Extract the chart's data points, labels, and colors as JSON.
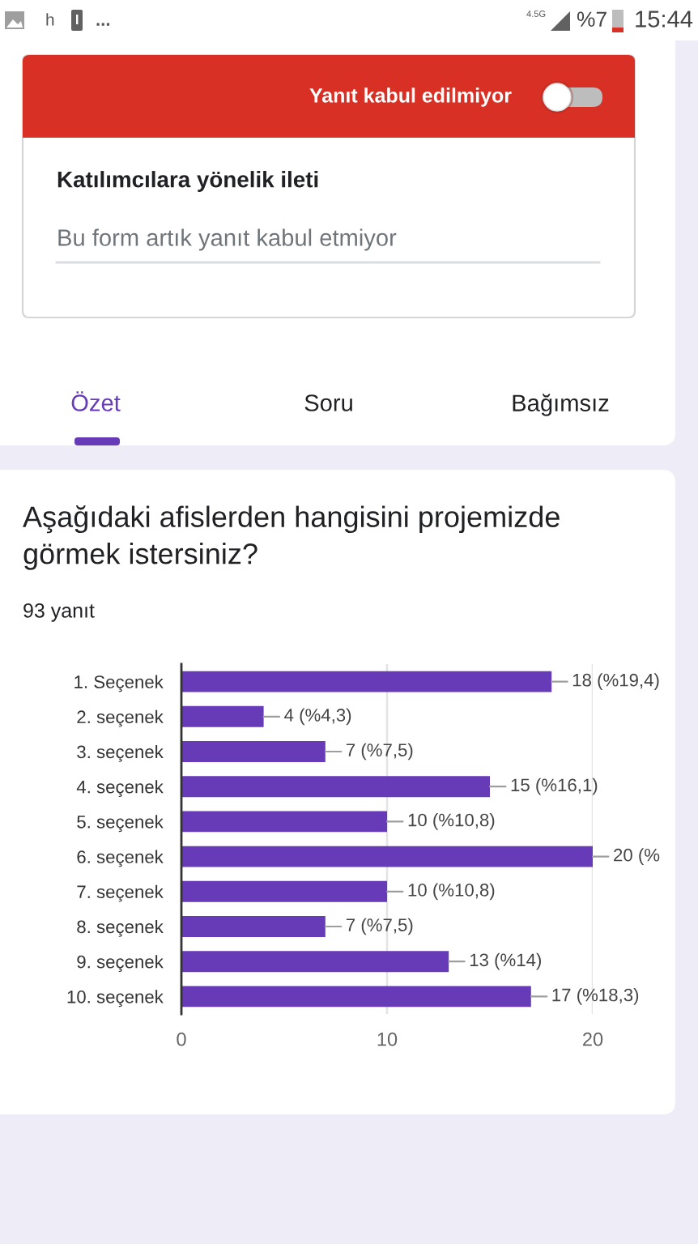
{
  "chart_data": {
    "type": "bar",
    "orientation": "horizontal",
    "title": "Aşağıdaki afislerden hangisini projemizde görmek istersiniz?",
    "subtitle": "93 yanıt",
    "categories": [
      "1. Seçenek",
      "2. seçenek",
      "3. seçenek",
      "4. seçenek",
      "5. seçenek",
      "6. seçenek",
      "7. seçenek",
      "8. seçenek",
      "9. seçenek",
      "10. seçenek"
    ],
    "values": [
      18,
      4,
      7,
      15,
      10,
      20,
      10,
      7,
      13,
      17
    ],
    "value_labels": [
      "18 (%19,4)",
      "4 (%4,3)",
      "7 (%7,5)",
      "15 (%16,1)",
      "10 (%10,8)",
      "20 (%",
      "10 (%10,8)",
      "7 (%7,5)",
      "13 (%14)",
      "17 (%18,3)"
    ],
    "color": "#673ab7",
    "xlim": [
      0,
      20
    ],
    "xticks": [
      0,
      10,
      20
    ],
    "grid": "x",
    "annotations": [
      "h",
      "...",
      "4.5G",
      "%7",
      "15:44",
      "Yanıt kabul edilmiyor",
      "Katılımcılara yönelik ileti",
      "Bu form artık yanıt kabul etmiyor",
      "Özet",
      "Soru",
      "Bağımsız"
    ]
  }
}
